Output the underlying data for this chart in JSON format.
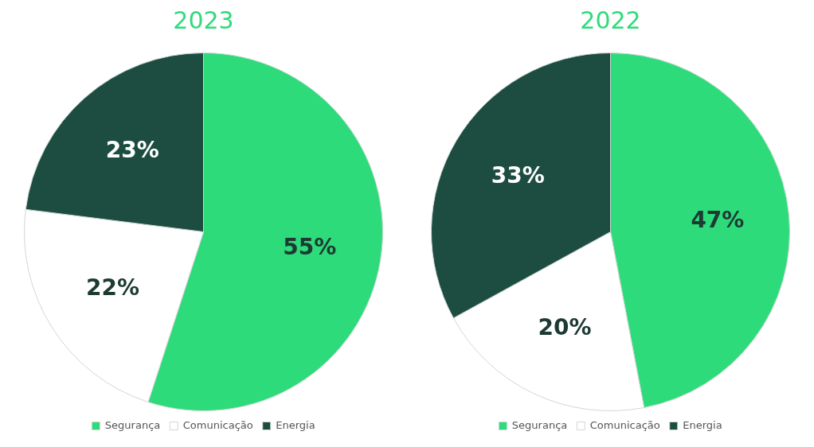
{
  "chart_data": [
    {
      "type": "pie",
      "title": "2023",
      "categories": [
        "Segurança",
        "Comunicação",
        "Energia"
      ],
      "values": [
        55,
        22,
        23
      ],
      "value_labels": [
        "55%",
        "22%",
        "23%"
      ],
      "colors": [
        "#2edb7a",
        "#ffffff",
        "#1d4d40"
      ],
      "legend": "bottom"
    },
    {
      "type": "pie",
      "title": "2022",
      "categories": [
        "Segurança",
        "Comunicação",
        "Energia"
      ],
      "values": [
        47,
        20,
        33
      ],
      "value_labels": [
        "47%",
        "20%",
        "33%"
      ],
      "colors": [
        "#2edb7a",
        "#ffffff",
        "#1d4d40"
      ],
      "legend": "bottom"
    }
  ]
}
